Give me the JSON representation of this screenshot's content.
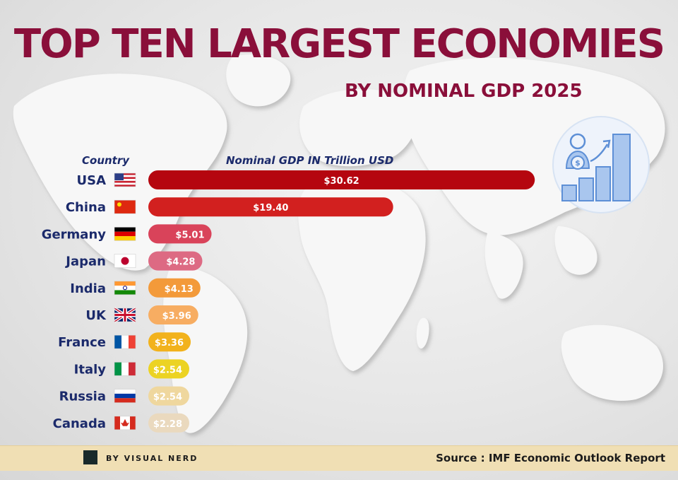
{
  "title": "TOP TEN LARGEST ECONOMIES",
  "subtitle": "BY NOMINAL GDP 2025",
  "column_headers": {
    "country": "Country",
    "gdp": "Nominal GDP IN Trillion USD"
  },
  "chart_data": {
    "type": "bar",
    "orientation": "horizontal",
    "title": "TOP TEN LARGEST ECONOMIES",
    "subtitle": "BY NOMINAL GDP 2025",
    "xlabel": "Nominal GDP IN Trillion USD",
    "ylabel": "Country",
    "xlim": [
      0,
      31
    ],
    "grid": false,
    "categories": [
      "USA",
      "China",
      "Germany",
      "Japan",
      "India",
      "UK",
      "France",
      "Italy",
      "Russia",
      "Canada"
    ],
    "values": [
      30.62,
      19.4,
      5.01,
      4.28,
      4.13,
      3.96,
      3.36,
      2.54,
      2.54,
      2.28
    ],
    "value_labels": [
      "$30.62",
      "$19.40",
      "$5.01",
      "$4.28",
      "$4.13",
      "$3.96",
      "$3.36",
      "$2.54",
      "$2.54",
      "$2.28"
    ],
    "bar_colors": [
      "#b5060f",
      "#d2201f",
      "#d9435a",
      "#dd6a83",
      "#f39a3a",
      "#f7ad62",
      "#f2b21c",
      "#ecd323",
      "#efd79e",
      "#ead9be"
    ],
    "flag_icons": [
      "usa-flag-icon",
      "china-flag-icon",
      "germany-flag-icon",
      "japan-flag-icon",
      "india-flag-icon",
      "uk-flag-icon",
      "france-flag-icon",
      "italy-flag-icon",
      "russia-flag-icon",
      "canada-flag-icon"
    ]
  },
  "colors": {
    "title": "#8a0f3a",
    "country_label": "#1b2a6b",
    "footer_bg": "#f0dfb4",
    "icon_blue": "#7aa6e0"
  },
  "decor_icon": "growth-chart-money-person-icon",
  "footer": {
    "brand": "BY VISUAL NERD",
    "source": "Source : IMF Economic Outlook Report"
  }
}
